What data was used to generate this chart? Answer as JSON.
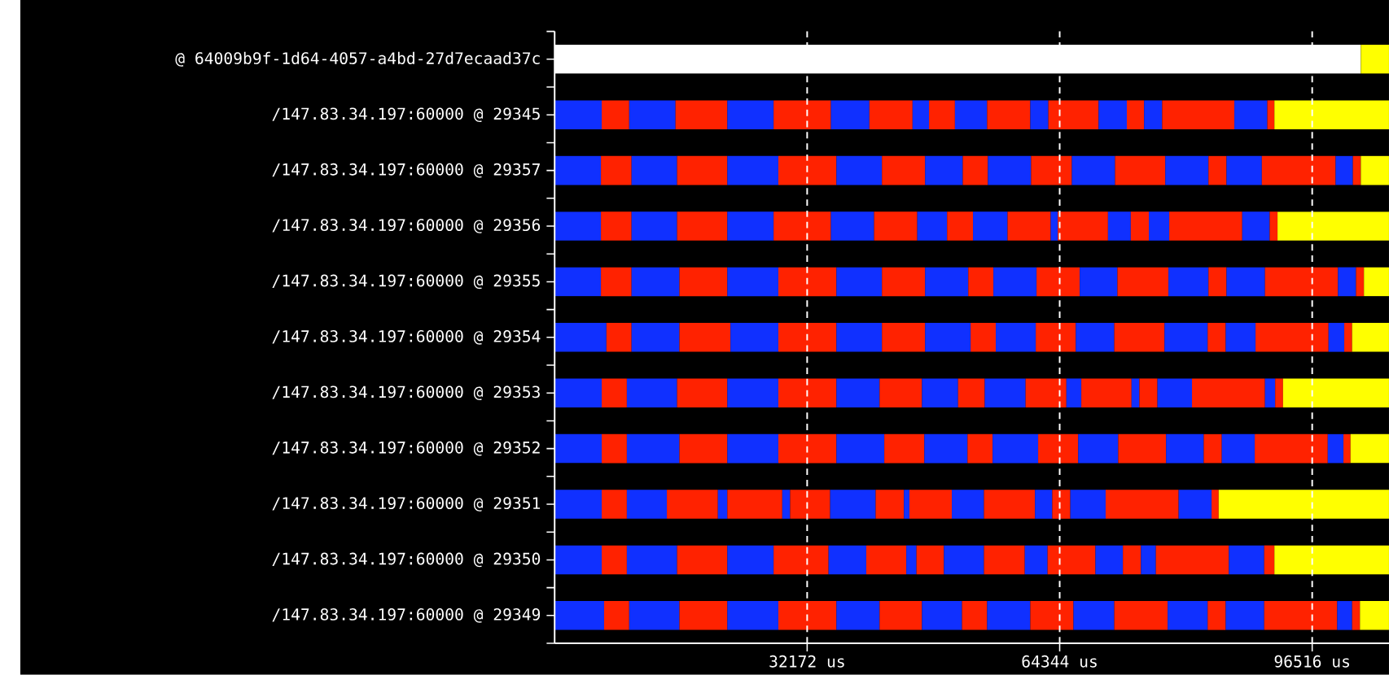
{
  "chart_data": {
    "type": "bar",
    "orientation": "horizontal",
    "stacked": true,
    "categories": [
      "@ 64009b9f-1d64-4057-a4bd-27d7ecaad37c",
      "/147.83.34.197:60000 @ 29345",
      "/147.83.34.197:60000 @ 29357",
      "/147.83.34.197:60000 @ 29356",
      "/147.83.34.197:60000 @ 29355",
      "/147.83.34.197:60000 @ 29354",
      "/147.83.34.197:60000 @ 29353",
      "/147.83.34.197:60000 @ 29352",
      "/147.83.34.197:60000 @ 29351",
      "/147.83.34.197:60000 @ 29350",
      "/147.83.34.197:60000 @ 29349"
    ],
    "xlim": [
      0,
      106300
    ],
    "xticks": [
      {
        "value": 32172,
        "label": "32172 us"
      },
      {
        "value": 64344,
        "label": "64344 us"
      },
      {
        "value": 96516,
        "label": "96516 us"
      }
    ],
    "grid": "x",
    "series": [
      {
        "colors": [
          "#ffffff",
          "#1030ff",
          "#1030ff",
          "#1030ff",
          "#1030ff",
          "#1030ff",
          "#1030ff",
          "#1030ff",
          "#1030ff",
          "#1030ff",
          "#1030ff"
        ],
        "values": [
          102700,
          6000,
          5900,
          5900,
          5900,
          6600,
          6000,
          6000,
          6000,
          6000,
          6300
        ]
      },
      {
        "color": "#ff2200",
        "values": [
          null,
          3500,
          3900,
          3900,
          3900,
          3200,
          3200,
          3200,
          3200,
          3200,
          3200
        ]
      },
      {
        "color": "#1030ff",
        "values": [
          null,
          5900,
          5800,
          5800,
          6100,
          6100,
          6400,
          6700,
          5100,
          6400,
          6400
        ]
      },
      {
        "color": "#ff2200",
        "values": [
          null,
          6600,
          6400,
          6400,
          6100,
          6500,
          6400,
          6100,
          6500,
          6400,
          6100
        ]
      },
      {
        "color": "#1030ff",
        "values": [
          null,
          5900,
          6500,
          5900,
          6500,
          6100,
          6500,
          6500,
          1200,
          5900,
          6500
        ]
      },
      {
        "color": "#ff2200",
        "values": [
          null,
          7300,
          7400,
          7300,
          7400,
          7400,
          7400,
          7400,
          7000,
          7000,
          7400
        ]
      },
      {
        "color": "#1030ff",
        "values": [
          null,
          4900,
          5800,
          5500,
          5800,
          5800,
          5500,
          6100,
          1000,
          4800,
          5500
        ]
      },
      {
        "color": "#ff2200",
        "values": [
          null,
          5500,
          5500,
          5500,
          5500,
          5500,
          5400,
          5100,
          5100,
          5100,
          5400
        ]
      },
      {
        "color": "#1030ff",
        "values": [
          null,
          2100,
          4800,
          3800,
          5500,
          5800,
          4600,
          5500,
          5800,
          1300,
          5100
        ]
      },
      {
        "color": "#ff2200",
        "values": [
          null,
          3300,
          3200,
          3300,
          3200,
          3200,
          3400,
          3200,
          3600,
          3500,
          3200
        ]
      },
      {
        "color": "#1030ff",
        "values": [
          null,
          4100,
          5500,
          4400,
          5500,
          5100,
          5200,
          5800,
          700,
          5100,
          5500
        ]
      },
      {
        "color": "#ff2200",
        "values": [
          null,
          5500,
          5200,
          5500,
          5500,
          5100,
          5200,
          5100,
          5400,
          5200,
          5500
        ]
      },
      {
        "color": "#1030ff",
        "values": [
          null,
          2300,
          5500,
          900,
          4800,
          4900,
          1900,
          5100,
          4100,
          2900,
          5200
        ]
      },
      {
        "color": "#ff2200",
        "values": [
          null,
          6400,
          6400,
          6400,
          6500,
          6400,
          6400,
          6100,
          6500,
          6100,
          6800
        ]
      },
      {
        "color": "#1030ff",
        "values": [
          null,
          3600,
          5500,
          2900,
          5100,
          5500,
          1000,
          4800,
          2200,
          3500,
          5100
        ]
      },
      {
        "color": "#ff2200",
        "values": [
          null,
          2200,
          2300,
          2300,
          2300,
          2300,
          2300,
          2300,
          2300,
          2300,
          2300
        ]
      },
      {
        "color": "#1030ff",
        "values": [
          null,
          2300,
          4500,
          2600,
          4900,
          3800,
          4400,
          4200,
          4500,
          1900,
          4900
        ]
      },
      {
        "color": "#ff2200",
        "values": [
          null,
          9200,
          9400,
          9300,
          9300,
          9300,
          9300,
          9300,
          9300,
          9300,
          9300
        ]
      },
      {
        "color": "#1030ff",
        "values": [
          null,
          4200,
          2200,
          3500,
          2300,
          2000,
          1300,
          2000,
          4200,
          4500,
          1900
        ]
      },
      {
        "color": "#ff2200",
        "values": [
          null,
          900,
          1000,
          1000,
          1000,
          1000,
          1000,
          900,
          900,
          1300,
          1000
        ]
      },
      {
        "color": "#ffff00",
        "values": [
          3600,
          14600,
          3600,
          14200,
          3200,
          4700,
          13500,
          4900,
          21700,
          14600,
          3700
        ]
      }
    ]
  }
}
